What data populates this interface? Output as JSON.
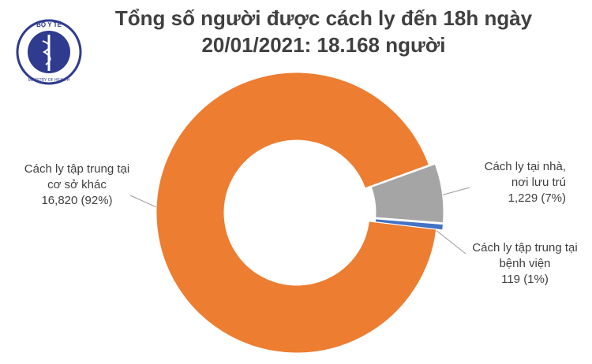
{
  "logo": {
    "top": "BỘ Y TẾ",
    "bottom": "MINISTRY OF HEALTH"
  },
  "chart_data": {
    "type": "donut",
    "title": [
      "Tổng số người được cách ly đến 18h ngày",
      "20/01/2021: 18.168 người"
    ],
    "categories": [
      "Cách ly tập trung tại cơ sở khác",
      "Cách ly tại nhà, nơi lưu trú",
      "Cách ly tập trung tại bệnh viện"
    ],
    "values": [
      16820,
      1229,
      119
    ],
    "value_labels": [
      "16,820 (92%)",
      "1,229 (7%)",
      "119 (1%)"
    ],
    "colors": [
      "#ED7D31",
      "#A5A5A5",
      "#4472C4"
    ]
  }
}
